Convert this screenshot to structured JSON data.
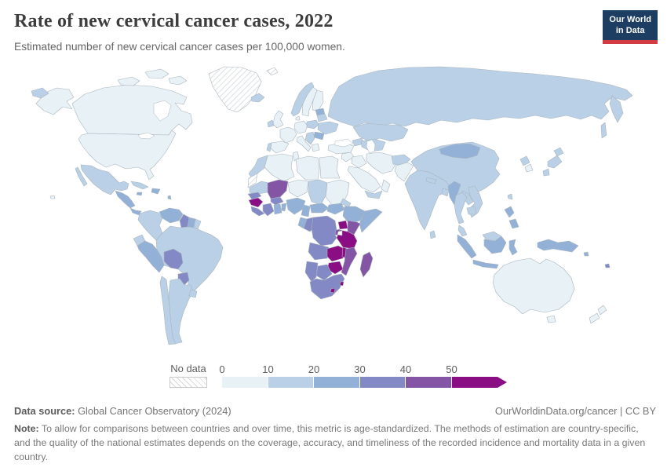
{
  "header": {
    "title": "Rate of new cervical cancer cases, 2022",
    "subtitle": "Estimated number of new cervical cancer cases per 100,000 women.",
    "logo": {
      "line1": "Our World",
      "line2": "in Data",
      "bg": "#1d3d63",
      "accent": "#d13b41"
    }
  },
  "legend": {
    "no_data_label": "No data",
    "ticks": [
      "0",
      "10",
      "20",
      "30",
      "40",
      "50"
    ]
  },
  "footer": {
    "source_label": "Data source:",
    "source_text": "Global Cancer Observatory (2024)",
    "attribution": "OurWorldinData.org/cancer | CC BY",
    "note_label": "Note:",
    "note_text": "To allow for comparisons between countries and over time, this metric is age-standardized. The methods of estimation are country-specific, and the quality of the national estimates depends on the coverage, accuracy, and timeliness of the recorded incidence and mortality data in a given country."
  },
  "map": {
    "palette": [
      "#e7f1f6",
      "#b9d0e6",
      "#93b1d6",
      "#8389c4",
      "#8454a5",
      "#8a0d83"
    ],
    "stroke": "#a9b5be",
    "ocean": "#ffffff",
    "nodata_hatch_line": "#d4d9dc"
  },
  "chart_data": {
    "type": "choropleth",
    "title": "Rate of new cervical cancer cases, 2022",
    "unit": "new cervical cancer cases per 100,000 women",
    "year": 2022,
    "bin_edges": [
      0,
      10,
      20,
      30,
      40,
      50
    ],
    "bin_labels": [
      "0-10",
      "10-20",
      "20-30",
      "30-40",
      "40-50",
      "50+"
    ],
    "no_data_label": "No data",
    "regions": {
      "canada": 0,
      "usa": 0,
      "greenland": "no_data",
      "iceland": 1,
      "svalbard": "no_data",
      "mexico": 1,
      "central_america": 2,
      "panama": 2,
      "cuba": 1,
      "jamaica": 2,
      "hispaniola": 2,
      "lesser_antilles": 2,
      "colombia": 1,
      "venezuela": 2,
      "guyana": 3,
      "suriname": 2,
      "french_guiana": 1,
      "ecuador": 1,
      "peru": 2,
      "brazil": 1,
      "bolivia": 3,
      "paraguay": 3,
      "chile": 1,
      "argentina": 1,
      "uruguay": 1,
      "uk": 0,
      "ireland": 1,
      "norway": 1,
      "sweden": 0,
      "finland": 0,
      "denmark": 0,
      "baltics": 2,
      "poland": 1,
      "germany": 0,
      "france": 0,
      "spain": 0,
      "portugal": 1,
      "italy": 0,
      "balkans": 1,
      "romania": 2,
      "greece": 0,
      "ukraine": 1,
      "belarus": 1,
      "turkey": 0,
      "caucasus": 1,
      "russia": 1,
      "morocco": 1,
      "western_sahara": "no_data",
      "algeria": 0,
      "tunisia": 0,
      "libya": 0,
      "egypt": 0,
      "mauritania": 1,
      "mali": 4,
      "niger": 0,
      "chad": 1,
      "sudan": 0,
      "eritrea": 1,
      "senegal": 3,
      "guinea": 5,
      "sierra_leone_liberia": 3,
      "cote_divoire": 3,
      "ghana": 2,
      "togo_benin": 2,
      "burkina_faso": 3,
      "nigeria": 2,
      "cameroon": 2,
      "central_african_republic": 2,
      "south_sudan": 2,
      "ethiopia": 2,
      "somalia": 2,
      "uganda": 5,
      "kenya": 4,
      "rwanda_burundi": 4,
      "tanzania": 5,
      "gabon": 2,
      "congo": 3,
      "drc": 3,
      "angola": 3,
      "zambia": 5,
      "malawi": 5,
      "mozambique": 4,
      "zimbabwe": 5,
      "botswana": 3,
      "namibia": 3,
      "south_africa": 3,
      "lesotho": 5,
      "eswatini": 5,
      "madagascar": 4,
      "syria_levant": 0,
      "iraq": 0,
      "iran": 0,
      "saudi_arabia": 0,
      "yemen": 1,
      "oman": 0,
      "kazakhstan": 1,
      "uzbekistan_turkmenistan": 1,
      "afghanistan": 1,
      "pakistan": 0,
      "india": 1,
      "nepal": 1,
      "bangladesh": 1,
      "sri_lanka": 1,
      "myanmar": 2,
      "thailand": 1,
      "laos": 1,
      "vietnam": 1,
      "cambodia": 1,
      "malaysia": 1,
      "indonesia": 2,
      "philippines": 2,
      "papua_new_guinea": 2,
      "solomon_islands": 2,
      "fiji": 3,
      "china": 1,
      "mongolia": 2,
      "north_korea": 1,
      "south_korea": 0,
      "japan": 1,
      "taiwan": 1,
      "australia": 0,
      "new_zealand": 0
    }
  }
}
